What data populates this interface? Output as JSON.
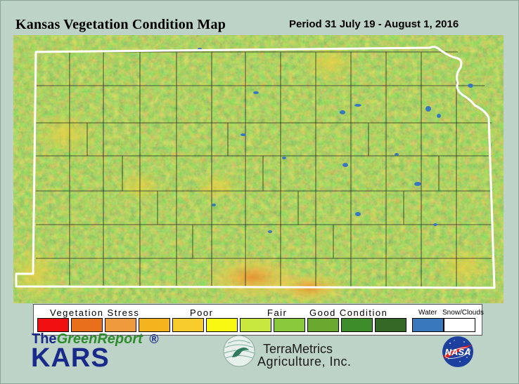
{
  "title": "Kansas Vegetation Condition Map",
  "period": "Period 31  July 19 - August 1, 2016",
  "legend": {
    "vegetation_stress": "Vegetation Stress",
    "poor": "Poor",
    "fair": "Fair",
    "good_condition": "Good Condition",
    "water": "Water",
    "snow_clouds": "Snow/Clouds",
    "swatch_colors": [
      "#f01010",
      "#e8701a",
      "#f09a3e",
      "#f5b41e",
      "#f8cc2a",
      "#f8f812",
      "#c8e840",
      "#88c83a",
      "#6aa830",
      "#3d8c2a",
      "#356826",
      "#3a78be",
      "#ffffff"
    ]
  },
  "logos": {
    "the": "The",
    "green_report": "GreenReport",
    "registered": "®",
    "kars": "KARS",
    "terrametrics_line1": "TerraMetrics",
    "terrametrics_line2": "Agriculture, Inc.",
    "nasa": "NASA"
  },
  "colors": {
    "background": "#bdd3c7",
    "border_line": "#ffffff",
    "county_lines": "#1a1a1a",
    "dominant_vegetation": "#5a9a30"
  }
}
